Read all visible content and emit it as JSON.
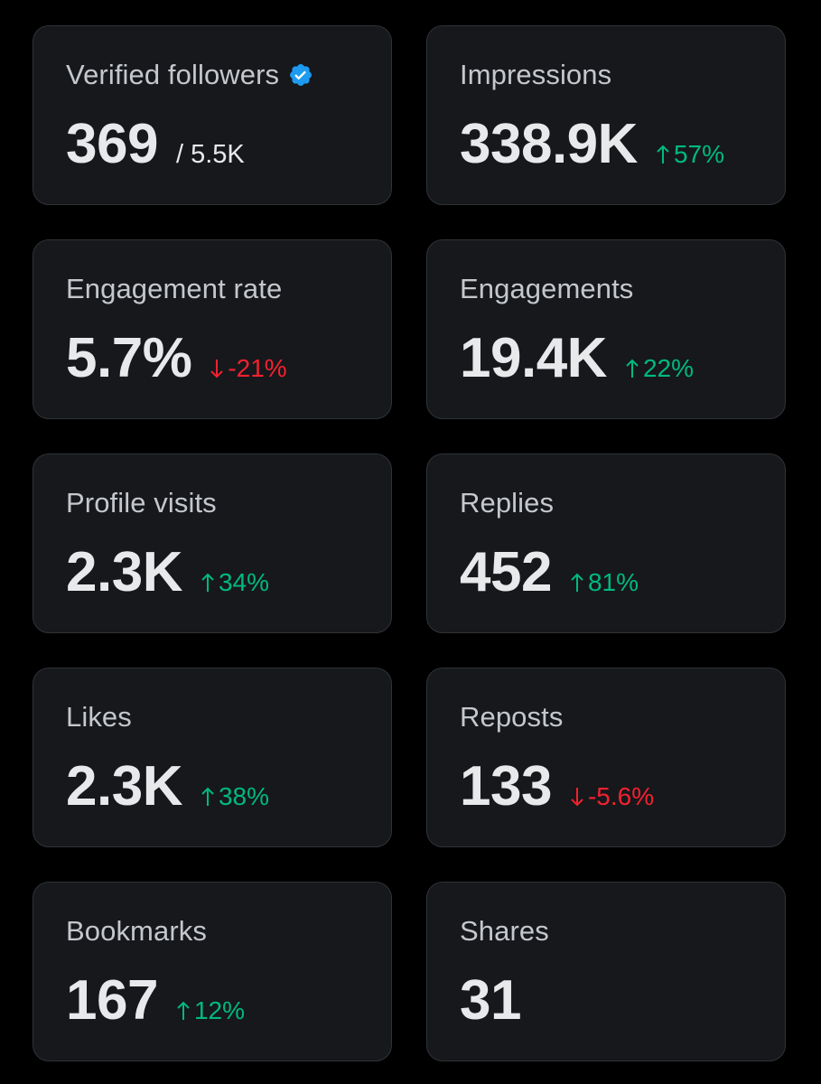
{
  "colors": {
    "background": "#000000",
    "card": "#16181c",
    "card_border": "#2f3336",
    "label": "#c4c7cb",
    "value": "#e7e9ea",
    "positive": "#00ba7c",
    "negative": "#f4212e",
    "verified": "#1d9bf0"
  },
  "cards": [
    {
      "label": "Verified followers",
      "value": "369",
      "sub": "/ 5.5K",
      "icon": "verified-badge-icon"
    },
    {
      "label": "Impressions",
      "value": "338.9K",
      "change": "57%",
      "direction": "up"
    },
    {
      "label": "Engagement rate",
      "value": "5.7%",
      "change": "-21%",
      "direction": "down"
    },
    {
      "label": "Engagements",
      "value": "19.4K",
      "change": "22%",
      "direction": "up"
    },
    {
      "label": "Profile visits",
      "value": "2.3K",
      "change": "34%",
      "direction": "up"
    },
    {
      "label": "Replies",
      "value": "452",
      "change": "81%",
      "direction": "up"
    },
    {
      "label": "Likes",
      "value": "2.3K",
      "change": "38%",
      "direction": "up"
    },
    {
      "label": "Reposts",
      "value": "133",
      "change": "-5.6%",
      "direction": "down"
    },
    {
      "label": "Bookmarks",
      "value": "167",
      "change": "12%",
      "direction": "up"
    },
    {
      "label": "Shares",
      "value": "31"
    }
  ]
}
